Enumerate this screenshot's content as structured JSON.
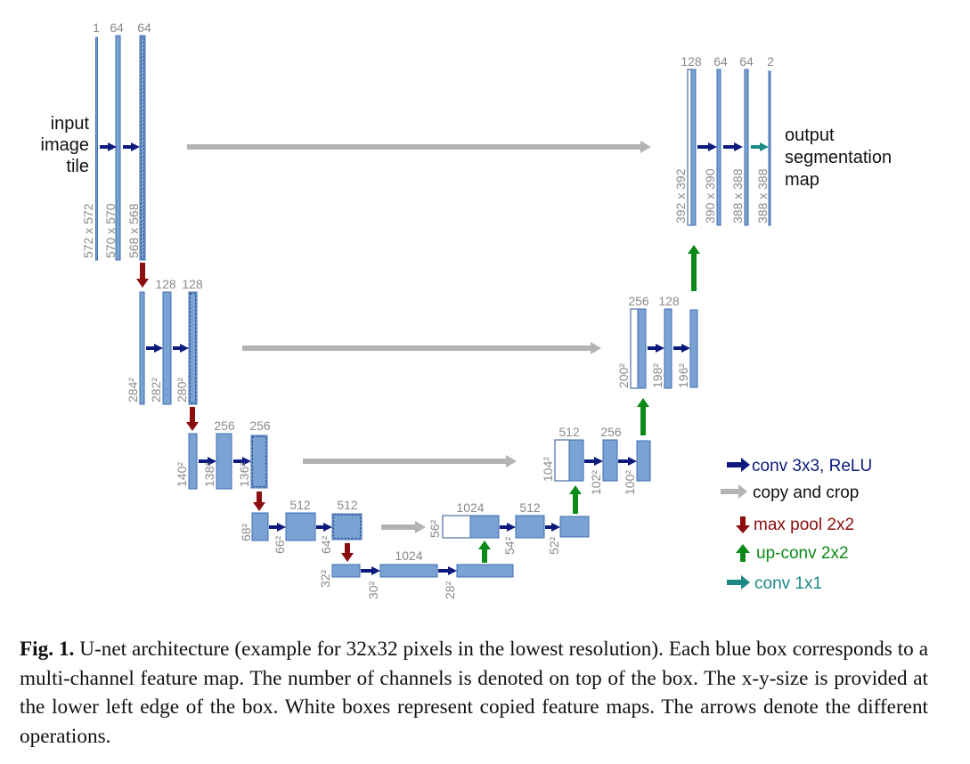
{
  "diagram": {
    "input_label": [
      "input",
      "image",
      "tile"
    ],
    "output_label": [
      "output",
      "segmentation",
      "map"
    ],
    "channels": {
      "l1": [
        "1",
        "64",
        "64"
      ],
      "l2": [
        "128",
        "128"
      ],
      "l3": [
        "256",
        "256"
      ],
      "l4": [
        "512",
        "512"
      ],
      "l5": [
        "1024"
      ],
      "u4": [
        "1024",
        "512"
      ],
      "u3": [
        "512",
        "256"
      ],
      "u2": [
        "256",
        "128"
      ],
      "u1": [
        "128",
        "64",
        "64",
        "2"
      ]
    },
    "sizes": {
      "l1": [
        "572 x 572",
        "570 x 570",
        "568 x 568"
      ],
      "l2": [
        "284²",
        "282²",
        "280²"
      ],
      "l3": [
        "140²",
        "138²",
        "136²"
      ],
      "l4": [
        "68²",
        "66²",
        "64²"
      ],
      "l5": [
        "32²",
        "30²",
        "28²"
      ],
      "u4": [
        "56²",
        "54²",
        "52²"
      ],
      "u3": [
        "104²",
        "102²",
        "100²"
      ],
      "u2": [
        "200²",
        "198²",
        "196²"
      ],
      "u1": [
        "392 x 392",
        "390 x 390",
        "388 x 388",
        "388 x 388"
      ]
    },
    "colors": {
      "feature_map": "#7aa3d4",
      "conv": "#0c1a7e",
      "copy": "#b3b3b3",
      "maxpool": "#8b0d0d",
      "upconv": "#0c8a18",
      "conv1x1": "#1b8a86"
    },
    "legend": [
      {
        "label": "conv 3x3, ReLU",
        "color": "#0c1a7e",
        "arrow": "right",
        "icon": "conv-arrow-icon"
      },
      {
        "label": "copy and crop",
        "color": "#111111",
        "arrow_color": "#b3b3b3",
        "arrow": "right",
        "icon": "copy-arrow-icon"
      },
      {
        "label": "max pool 2x2",
        "color": "#8b0d0d",
        "arrow": "down",
        "icon": "maxpool-arrow-icon"
      },
      {
        "label": "up-conv 2x2",
        "color": "#0c8a18",
        "arrow": "up",
        "icon": "upconv-arrow-icon"
      },
      {
        "label": "conv 1x1",
        "color": "#1b8a86",
        "arrow": "right",
        "icon": "conv1x1-arrow-icon"
      }
    ]
  },
  "caption": {
    "label": "Fig. 1.",
    "text": " U-net architecture (example for 32x32 pixels in the lowest resolution). Each blue box corresponds to a multi-channel feature map. The number of channels is denoted on top of the box. The x-y-size is provided at the lower left edge of the box. White boxes represent copied feature maps. The arrows denote the different operations."
  }
}
